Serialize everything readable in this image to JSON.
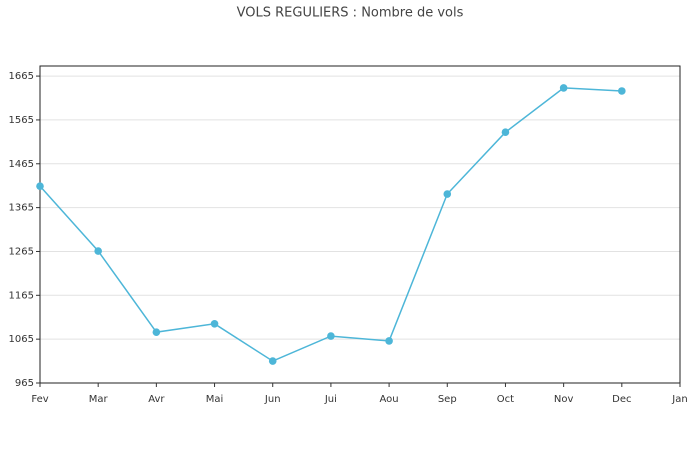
{
  "chart_data": {
    "type": "line",
    "title": "VOLS REGULIERS : Nombre de vols",
    "categories": [
      "Fev",
      "Mar",
      "Avr",
      "Mai",
      "Jun",
      "Jui",
      "Aou",
      "Sep",
      "Oct",
      "Nov",
      "Dec",
      "Jan"
    ],
    "series": [
      {
        "color": "#4db6d8",
        "values": [
          1414,
          1266,
          1081,
          1100,
          1015,
          1072,
          1061,
          1396,
          1537,
          1638,
          1631,
          null
        ]
      }
    ],
    "ylim": [
      965,
      1688
    ],
    "yticks": [
      965,
      1065,
      1165,
      1265,
      1365,
      1465,
      1565,
      1665
    ],
    "grid": true
  }
}
